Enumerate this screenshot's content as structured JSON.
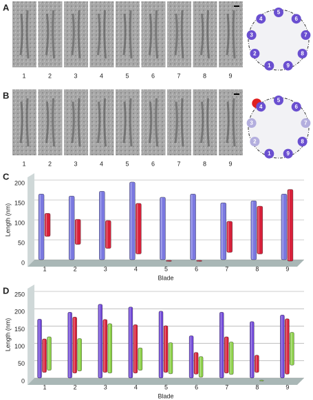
{
  "panels": [
    {
      "letter": "A",
      "labels": [
        "1",
        "2",
        "3",
        "4",
        "5",
        "6",
        "7",
        "8",
        "9"
      ],
      "ring": [
        {
          "label": "1",
          "color": "#6a4fd0"
        },
        {
          "label": "2",
          "color": "#6a4fd0"
        },
        {
          "label": "3",
          "color": "#6a4fd0"
        },
        {
          "label": "4",
          "color": "#6a4fd0"
        },
        {
          "label": "5",
          "color": "#6a4fd0"
        },
        {
          "label": "6",
          "color": "#6a4fd0"
        },
        {
          "label": "7",
          "color": "#6a4fd0"
        },
        {
          "label": "8",
          "color": "#6a4fd0"
        },
        {
          "label": "9",
          "color": "#6a4fd0"
        }
      ]
    },
    {
      "letter": "B",
      "labels": [
        "1",
        "2",
        "3",
        "4",
        "5",
        "6",
        "7",
        "8",
        "9"
      ],
      "ring": [
        {
          "label": "1",
          "color": "#6a4fd0"
        },
        {
          "label": "2",
          "color": "#b3aede"
        },
        {
          "label": "3",
          "color": "#b3aede"
        },
        {
          "label": "4",
          "color": "#6a4fd0"
        },
        {
          "label": "5",
          "color": "#6a4fd0"
        },
        {
          "label": "6",
          "color": "#6a4fd0"
        },
        {
          "label": "7",
          "color": "#b3aede"
        },
        {
          "label": "8",
          "color": "#6a4fd0"
        },
        {
          "label": "9",
          "color": "#6a4fd0"
        }
      ]
    }
  ],
  "chart_data": [
    {
      "type": "bar",
      "label": "C",
      "x_label": "Blade",
      "y_label": "Length (nm)",
      "categories": [
        "1",
        "2",
        "3",
        "4",
        "5",
        "6",
        "7",
        "8",
        "9"
      ],
      "ylim": [
        0,
        200
      ],
      "yticks": [
        0,
        50,
        100,
        150,
        200
      ],
      "grid": true,
      "series": [
        {
          "color": "#7a78e0",
          "values": [
            165,
            160,
            172,
            195,
            157,
            165,
            143,
            148,
            165
          ]
        },
        {
          "color": "#d8203a",
          "base": [
            62,
            42,
            32,
            18,
            0,
            0,
            22,
            18,
            0
          ],
          "values": [
            120,
            105,
            102,
            145,
            2,
            2,
            100,
            138,
            180
          ]
        }
      ]
    },
    {
      "type": "bar",
      "label": "D",
      "x_label": "Blade",
      "y_label": "Length (nm)",
      "categories": [
        "1",
        "2",
        "3",
        "4",
        "5",
        "6",
        "7",
        "8",
        "9"
      ],
      "ylim": [
        0,
        250
      ],
      "yticks": [
        0,
        50,
        100,
        150,
        200,
        250
      ],
      "grid": true,
      "series": [
        {
          "color": "#7048d8",
          "values": [
            170,
            190,
            213,
            205,
            193,
            122,
            190,
            163,
            182
          ]
        },
        {
          "color": "#d8203a",
          "base": [
            20,
            18,
            20,
            18,
            20,
            15,
            18,
            20,
            15
          ],
          "values": [
            117,
            180,
            173,
            158,
            155,
            78,
            123,
            70,
            175
          ]
        },
        {
          "color": "#8cd048",
          "base": [
            30,
            28,
            22,
            30,
            20,
            10,
            18,
            0,
            45
          ],
          "values": [
            127,
            122,
            165,
            95,
            110,
            70,
            112,
            2,
            140
          ]
        }
      ]
    }
  ]
}
